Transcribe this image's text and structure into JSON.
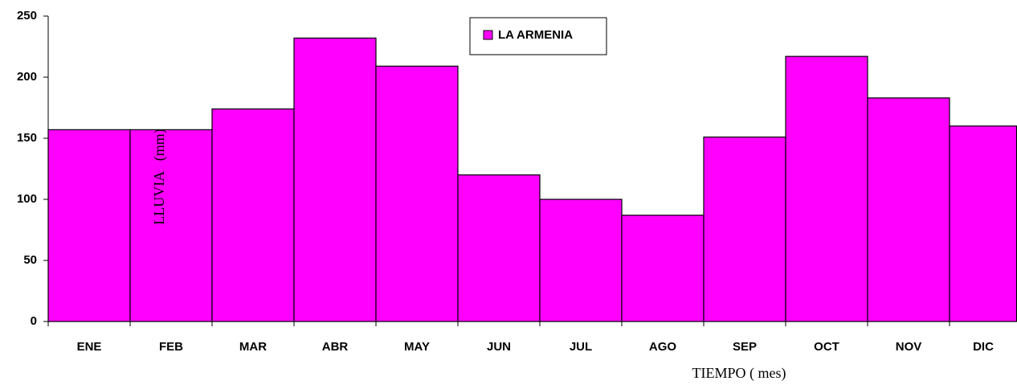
{
  "chart_data": {
    "type": "bar",
    "x_label": "TIEMPO ( mes)",
    "y_label": "LLUVIA   (mm)",
    "categories": [
      "ENE",
      "FEB",
      "MAR",
      "ABR",
      "MAY",
      "JUN",
      "JUL",
      "AGO",
      "SEP",
      "OCT",
      "NOV",
      "DIC"
    ],
    "series": [
      {
        "name": "LA ARMENIA",
        "color": "#ff00ff",
        "values": [
          157,
          157,
          174,
          232,
          209,
          120,
          100,
          87,
          151,
          217,
          183,
          160
        ]
      }
    ],
    "ylim": [
      0,
      250
    ],
    "yticks": [
      0,
      50,
      100,
      150,
      200,
      250
    ],
    "grid": false,
    "legend": "top"
  }
}
